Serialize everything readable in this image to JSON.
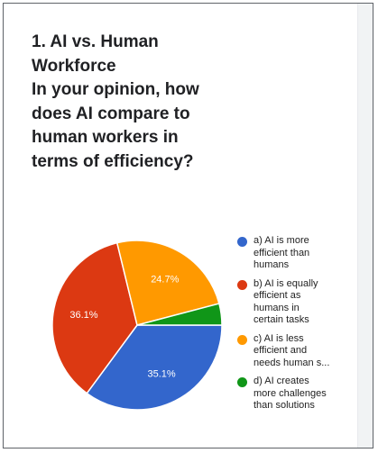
{
  "question": {
    "title_lines": [
      "1. AI vs. Human",
      "Workforce",
      "In your opinion, how",
      "does AI compare to",
      "human workers in",
      "terms of efficiency?"
    ]
  },
  "chart_data": {
    "type": "pie",
    "title": "1. AI vs. Human Workforce In your opinion, how does AI compare to human workers in terms of efficiency?",
    "slices": [
      {
        "label": "a) AI is more efficient than humans",
        "legend_lines": [
          "a) AI is more",
          "efficient than",
          "humans"
        ],
        "value": 35.1,
        "value_label": "35.1%",
        "color": "#3366cc"
      },
      {
        "label": "b) AI is equally efficient as humans in certain tasks",
        "legend_lines": [
          "b) AI is equally",
          "efficient as",
          "humans in",
          "certain tasks"
        ],
        "value": 36.1,
        "value_label": "36.1%",
        "color": "#dc3912"
      },
      {
        "label": "c) AI is less efficient and needs human s...",
        "legend_lines": [
          "c) AI is less",
          "efficient and",
          "needs human s..."
        ],
        "value": 24.7,
        "value_label": "24.7%",
        "color": "#ff9900"
      },
      {
        "label": "d) AI creates more challenges than solutions",
        "legend_lines": [
          "d) AI creates",
          "more challenges",
          "than solutions"
        ],
        "value": 4.1,
        "value_label": "",
        "color": "#109618"
      }
    ],
    "legend_position": "right"
  }
}
